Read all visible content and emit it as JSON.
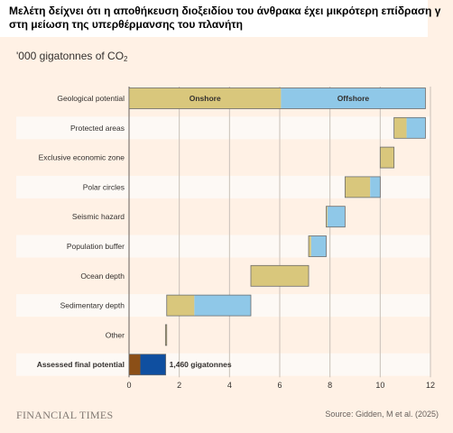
{
  "headline": {
    "line1": "Μελέτη δείχνει ότι η αποθήκευση διοξειδίου του άνθρακα έχει μικρότερη επίδραση γ",
    "line2": "στη μείωση της υπερθέρμανσης του πλανήτη"
  },
  "units": {
    "prefix": "'000 gigatonnes of CO",
    "sub": "2"
  },
  "footer": {
    "brand": "FINANCIAL TIMES",
    "source": "Source: Gidden, M et al. (2025)"
  },
  "colors": {
    "onshore": "#d9c77c",
    "offshore": "#8fc8e8",
    "final_onshore": "#8b4f17",
    "final_offshore": "#0f4fa0",
    "band": "#fdf9f5",
    "grid": "#c8c0b8"
  },
  "chart_data": {
    "type": "waterfall",
    "xlim": [
      0,
      12
    ],
    "xticks": [
      "0",
      "2",
      "4",
      "6",
      "8",
      "10",
      "12"
    ],
    "xtick_values": [
      0,
      2,
      4,
      6,
      8,
      10,
      12
    ],
    "series_labels": {
      "onshore": "Onshore",
      "offshore": "Offshore"
    },
    "rows": [
      {
        "label": "Geological potential",
        "bold": false,
        "onshore": [
          0,
          6.05
        ],
        "offshore": [
          6.05,
          11.8
        ]
      },
      {
        "label": "Protected areas",
        "bold": false,
        "onshore": [
          10.55,
          11.05
        ],
        "offshore": [
          11.05,
          11.8
        ]
      },
      {
        "label": "Exclusive economic zone",
        "bold": false,
        "onshore": [
          10.0,
          10.55
        ],
        "offshore": null
      },
      {
        "label": "Polar circles",
        "bold": false,
        "onshore": [
          8.6,
          9.6
        ],
        "offshore": [
          9.6,
          10.0
        ]
      },
      {
        "label": "Seismic hazard",
        "bold": false,
        "onshore": [
          7.85,
          7.9
        ],
        "offshore": [
          7.9,
          8.6
        ]
      },
      {
        "label": "Population buffer",
        "bold": false,
        "onshore": [
          7.15,
          7.25
        ],
        "offshore": [
          7.25,
          7.85
        ]
      },
      {
        "label": "Ocean depth",
        "bold": false,
        "onshore": [
          4.85,
          7.15
        ],
        "offshore": null
      },
      {
        "label": "Sedimentary depth",
        "bold": false,
        "onshore": [
          1.5,
          2.6
        ],
        "offshore": [
          2.6,
          4.85
        ]
      },
      {
        "label": "Other",
        "bold": false,
        "onshore": [
          1.45,
          1.5
        ],
        "offshore": null
      },
      {
        "label": "Assessed final potential",
        "bold": true,
        "onshore": [
          0,
          0.45
        ],
        "offshore": [
          0.45,
          1.46
        ],
        "annotation": "1,460 gigatonnes"
      }
    ]
  }
}
